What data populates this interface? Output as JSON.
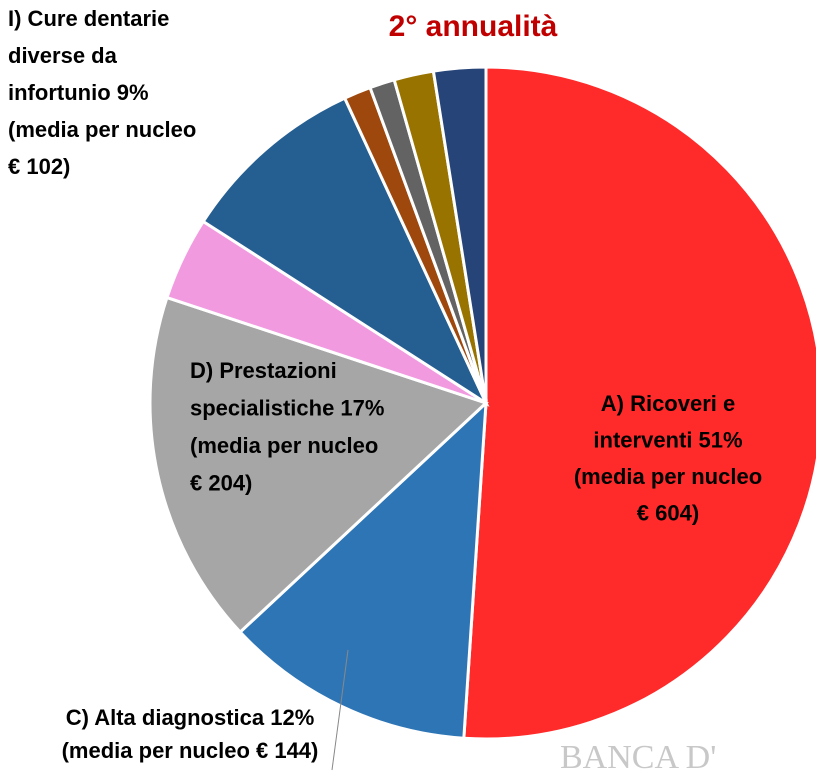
{
  "chart_data": {
    "type": "pie",
    "title": "2° annualità",
    "values": [
      51,
      12,
      17,
      4,
      9,
      1.3,
      1.2,
      1.9,
      2.5
    ],
    "colors": [
      "#ff2a2a",
      "#2e75b6",
      "#a6a6a6",
      "#f19ae0",
      "#255e91",
      "#9e480e",
      "#636363",
      "#997300",
      "#264478"
    ],
    "value_labels": [
      [
        "A) Ricoveri e",
        "interventi 51%",
        "(media per nucleo",
        "€ 604)"
      ],
      [
        "C) Alta diagnostica 12%",
        "(media per nucleo € 144)"
      ],
      [
        "D) Prestazioni",
        "specialistiche 17%",
        "(media per nucleo",
        "€ 204)"
      ],
      null,
      [
        "I) Cure dentarie",
        "diverse da",
        "infortunio 9%",
        "(media per nucleo",
        "€ 102)"
      ],
      null,
      null,
      null,
      null
    ],
    "watermark": "BANCA D'"
  }
}
